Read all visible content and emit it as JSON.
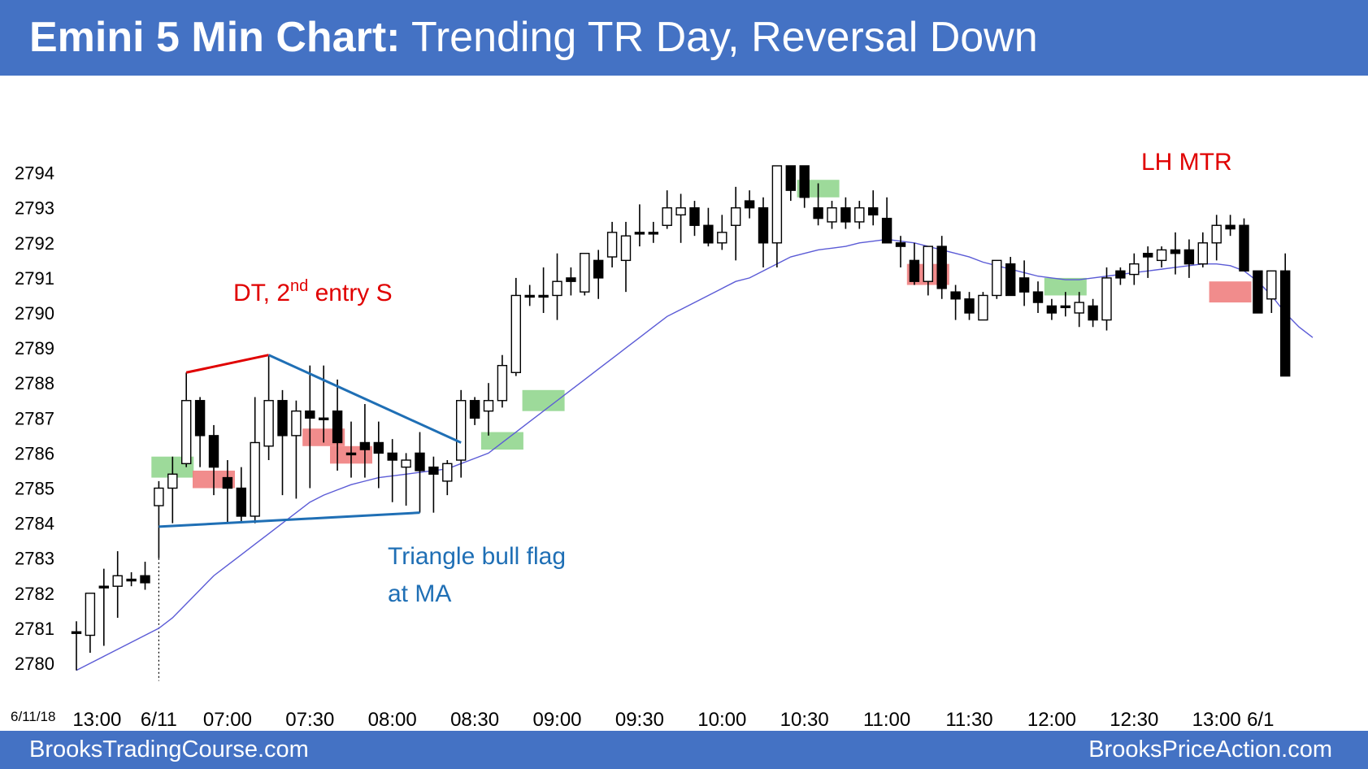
{
  "header": {
    "title_bold": "Emini 5 Min Chart:",
    "title_rest": " Trending TR Day, Reversal Down"
  },
  "footer": {
    "left": "BrooksTradingCourse.com",
    "right": "BrooksPriceAction.com"
  },
  "colors": {
    "header_bg": "#4472c4",
    "bull_signal": "#92d68f",
    "bear_signal": "#f08080",
    "ma": "#5b5bd6",
    "annotation_red": "#e00000",
    "annotation_blue": "#1f6fb5"
  },
  "chart_data": {
    "type": "candlestick",
    "date_label": "6/11/18",
    "ylim": [
      2779.5,
      2794.5
    ],
    "y_ticks": [
      2780,
      2781,
      2782,
      2783,
      2784,
      2785,
      2786,
      2787,
      2788,
      2789,
      2790,
      2791,
      2792,
      2793,
      2794
    ],
    "x_tick_labels": [
      {
        "label": "13:00",
        "bar": 1.5
      },
      {
        "label": "6/11",
        "bar": 6
      },
      {
        "label": "07:00",
        "bar": 11
      },
      {
        "label": "07:30",
        "bar": 17
      },
      {
        "label": "08:00",
        "bar": 23
      },
      {
        "label": "08:30",
        "bar": 29
      },
      {
        "label": "09:00",
        "bar": 35
      },
      {
        "label": "09:30",
        "bar": 41
      },
      {
        "label": "10:00",
        "bar": 47
      },
      {
        "label": "10:30",
        "bar": 53
      },
      {
        "label": "11:00",
        "bar": 59
      },
      {
        "label": "11:30",
        "bar": 65
      },
      {
        "label": "12:00",
        "bar": 71
      },
      {
        "label": "12:30",
        "bar": 77
      },
      {
        "label": "13:00",
        "bar": 83
      },
      {
        "label": "6/1",
        "bar": 86.2
      }
    ],
    "bars": [
      [
        2780.9,
        2781.2,
        2779.8,
        2780.9
      ],
      [
        2780.8,
        2782.0,
        2780.3,
        2782.0
      ],
      [
        2782.2,
        2782.7,
        2780.5,
        2782.2
      ],
      [
        2782.2,
        2783.2,
        2781.3,
        2782.5
      ],
      [
        2782.4,
        2782.6,
        2782.2,
        2782.4
      ],
      [
        2782.5,
        2782.9,
        2782.1,
        2782.3
      ],
      [
        2784.5,
        2785.2,
        2783.0,
        2785.0
      ],
      [
        2785.0,
        2785.9,
        2784.0,
        2785.4
      ],
      [
        2785.7,
        2788.3,
        2785.6,
        2787.5
      ],
      [
        2787.5,
        2787.6,
        2785.6,
        2786.5
      ],
      [
        2786.5,
        2786.8,
        2784.8,
        2785.6
      ],
      [
        2785.3,
        2785.8,
        2784.0,
        2785.0
      ],
      [
        2785.0,
        2785.6,
        2784.0,
        2784.2
      ],
      [
        2784.2,
        2787.6,
        2784.0,
        2786.3
      ],
      [
        2786.2,
        2788.8,
        2785.8,
        2787.5
      ],
      [
        2787.5,
        2787.8,
        2784.8,
        2786.5
      ],
      [
        2786.5,
        2787.5,
        2784.7,
        2787.2
      ],
      [
        2787.2,
        2788.5,
        2785.0,
        2787.0
      ],
      [
        2787.0,
        2788.5,
        2786.3,
        2787.0
      ],
      [
        2787.2,
        2788.1,
        2785.5,
        2786.3
      ],
      [
        2786.0,
        2786.9,
        2785.3,
        2786.0
      ],
      [
        2786.3,
        2787.4,
        2785.3,
        2786.1
      ],
      [
        2786.3,
        2786.9,
        2785.0,
        2786.0
      ],
      [
        2786.0,
        2786.4,
        2784.6,
        2785.8
      ],
      [
        2785.6,
        2786.0,
        2784.5,
        2785.8
      ],
      [
        2786.0,
        2786.6,
        2784.3,
        2785.5
      ],
      [
        2785.6,
        2785.9,
        2784.3,
        2785.4
      ],
      [
        2785.2,
        2785.8,
        2784.8,
        2785.7
      ],
      [
        2785.8,
        2787.8,
        2785.3,
        2787.5
      ],
      [
        2787.5,
        2787.6,
        2786.8,
        2787.0
      ],
      [
        2787.2,
        2788.0,
        2786.5,
        2787.5
      ],
      [
        2787.5,
        2788.8,
        2787.3,
        2788.5
      ],
      [
        2788.3,
        2791.0,
        2788.2,
        2790.5
      ],
      [
        2790.5,
        2790.8,
        2790.2,
        2790.5
      ],
      [
        2790.5,
        2791.3,
        2790.0,
        2790.5
      ],
      [
        2790.5,
        2791.7,
        2789.8,
        2790.9
      ],
      [
        2791.0,
        2791.3,
        2790.5,
        2790.9
      ],
      [
        2790.6,
        2791.4,
        2790.5,
        2791.7
      ],
      [
        2791.5,
        2791.8,
        2790.4,
        2791.0
      ],
      [
        2791.6,
        2792.6,
        2791.3,
        2792.3
      ],
      [
        2791.5,
        2792.6,
        2790.6,
        2792.2
      ],
      [
        2792.3,
        2793.1,
        2791.9,
        2792.3
      ],
      [
        2792.3,
        2792.6,
        2792.0,
        2792.3
      ],
      [
        2792.5,
        2793.5,
        2792.4,
        2793.0
      ],
      [
        2792.8,
        2793.4,
        2792.0,
        2793.0
      ],
      [
        2793.0,
        2793.2,
        2792.2,
        2792.5
      ],
      [
        2792.5,
        2793.0,
        2791.9,
        2792.0
      ],
      [
        2792.0,
        2792.8,
        2791.8,
        2792.3
      ],
      [
        2792.5,
        2793.6,
        2791.5,
        2793.0
      ],
      [
        2793.2,
        2793.5,
        2792.7,
        2793.0
      ],
      [
        2793.0,
        2793.3,
        2791.3,
        2792.0
      ],
      [
        2792.0,
        2794.2,
        2791.3,
        2794.2
      ],
      [
        2794.2,
        2794.2,
        2793.2,
        2793.5
      ],
      [
        2794.2,
        2794.2,
        2793.0,
        2793.3
      ],
      [
        2793.0,
        2793.7,
        2792.5,
        2792.7
      ],
      [
        2792.6,
        2793.2,
        2792.4,
        2793.0
      ],
      [
        2793.0,
        2793.3,
        2792.4,
        2792.6
      ],
      [
        2792.6,
        2793.2,
        2792.4,
        2793.0
      ],
      [
        2793.0,
        2793.5,
        2792.5,
        2792.8
      ],
      [
        2792.7,
        2793.3,
        2792.2,
        2792.0
      ],
      [
        2792.0,
        2792.2,
        2791.3,
        2791.9
      ],
      [
        2791.5,
        2792.0,
        2790.8,
        2790.9
      ],
      [
        2790.9,
        2791.9,
        2790.5,
        2791.9
      ],
      [
        2791.9,
        2792.2,
        2790.4,
        2790.7
      ],
      [
        2790.6,
        2790.8,
        2789.8,
        2790.4
      ],
      [
        2790.4,
        2790.6,
        2789.8,
        2790.0
      ],
      [
        2789.8,
        2790.6,
        2789.8,
        2790.5
      ],
      [
        2790.5,
        2791.5,
        2790.4,
        2791.5
      ],
      [
        2791.4,
        2791.6,
        2790.5,
        2790.5
      ],
      [
        2791.0,
        2791.5,
        2790.2,
        2790.6
      ],
      [
        2790.6,
        2790.9,
        2790.0,
        2790.3
      ],
      [
        2790.2,
        2790.4,
        2789.8,
        2790.0
      ],
      [
        2790.2,
        2790.6,
        2789.9,
        2790.2
      ],
      [
        2790.0,
        2790.6,
        2789.6,
        2790.3
      ],
      [
        2790.2,
        2790.4,
        2789.6,
        2789.8
      ],
      [
        2789.8,
        2791.3,
        2789.5,
        2791.0
      ],
      [
        2791.2,
        2791.3,
        2790.8,
        2791.0
      ],
      [
        2791.1,
        2791.7,
        2790.8,
        2791.4
      ],
      [
        2791.7,
        2791.9,
        2791.0,
        2791.6
      ],
      [
        2791.5,
        2791.9,
        2791.3,
        2791.8
      ],
      [
        2791.8,
        2792.3,
        2791.1,
        2791.7
      ],
      [
        2791.8,
        2792.1,
        2791.0,
        2791.4
      ],
      [
        2791.4,
        2792.3,
        2791.3,
        2792.0
      ],
      [
        2792.0,
        2792.8,
        2791.5,
        2792.5
      ],
      [
        2792.5,
        2792.8,
        2792.2,
        2792.4
      ],
      [
        2792.5,
        2792.7,
        2791.7,
        2791.2
      ],
      [
        2791.2,
        2791.2,
        2790.0,
        2790.0
      ],
      [
        2790.4,
        2791.0,
        2790.0,
        2791.2
      ],
      [
        2791.2,
        2791.7,
        2790.3,
        2788.2
      ]
    ],
    "ma_line": [
      2779.8,
      2780.0,
      2780.2,
      2780.4,
      2780.6,
      2780.8,
      2781.0,
      2781.3,
      2781.7,
      2782.1,
      2782.5,
      2782.8,
      2783.1,
      2783.4,
      2783.7,
      2784.0,
      2784.3,
      2784.6,
      2784.8,
      2784.95,
      2785.1,
      2785.2,
      2785.3,
      2785.35,
      2785.4,
      2785.45,
      2785.5,
      2785.55,
      2785.7,
      2785.85,
      2786.0,
      2786.3,
      2786.6,
      2786.9,
      2787.2,
      2787.5,
      2787.8,
      2788.1,
      2788.4,
      2788.7,
      2789.0,
      2789.3,
      2789.6,
      2789.9,
      2790.1,
      2790.3,
      2790.5,
      2790.7,
      2790.9,
      2791.0,
      2791.2,
      2791.4,
      2791.6,
      2791.7,
      2791.8,
      2791.85,
      2791.9,
      2792.0,
      2792.05,
      2792.1,
      2792.05,
      2792.0,
      2791.9,
      2791.8,
      2791.7,
      2791.6,
      2791.45,
      2791.35,
      2791.25,
      2791.15,
      2791.05,
      2791.0,
      2790.95,
      2790.95,
      2791.0,
      2791.05,
      2791.1,
      2791.15,
      2791.2,
      2791.25,
      2791.3,
      2791.35,
      2791.4,
      2791.4,
      2791.35,
      2791.2,
      2790.9,
      2790.5,
      2790.0,
      2789.6,
      2789.3
    ],
    "green_boxes": [
      [
        7,
        2785.3,
        2785.9
      ],
      [
        31,
        2786.1,
        2786.6
      ],
      [
        34,
        2787.2,
        2787.8
      ],
      [
        54,
        2793.3,
        2793.8
      ],
      [
        72,
        2790.5,
        2791.0
      ]
    ],
    "red_boxes": [
      [
        10,
        2785.0,
        2785.5
      ],
      [
        18,
        2786.2,
        2786.7
      ],
      [
        20,
        2785.7,
        2786.2
      ],
      [
        62,
        2790.8,
        2791.4
      ],
      [
        84,
        2790.3,
        2790.9
      ]
    ],
    "annotations": {
      "dt_label": "DT, 2",
      "dt_sup": "nd",
      "dt_suffix": " entry S",
      "triangle_line1": "Triangle bull flag",
      "triangle_line2": "at MA",
      "lh_mtr": "LH MTR"
    }
  }
}
